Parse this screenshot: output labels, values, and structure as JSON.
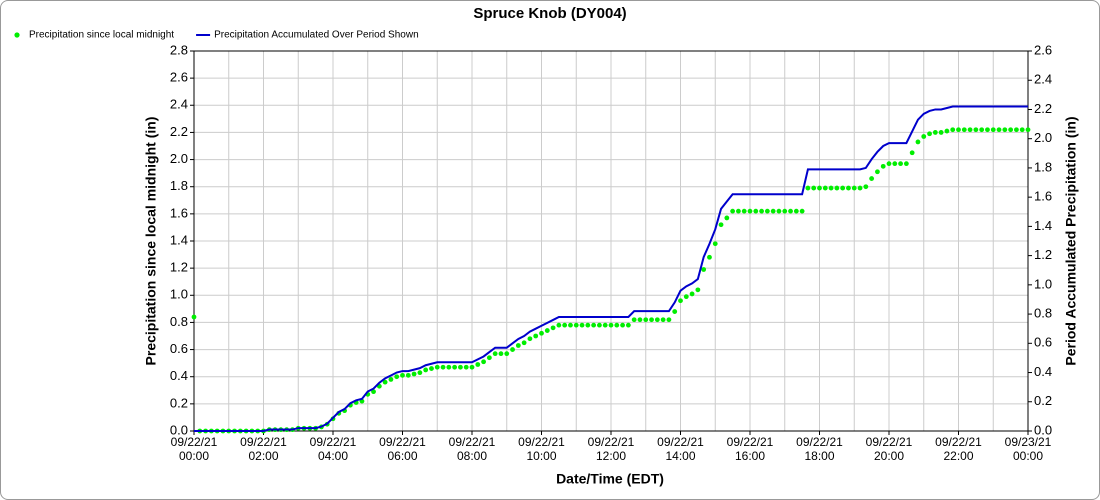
{
  "chart_data": {
    "type": "line",
    "title": "Spruce Knob (DY004)",
    "xlabel": "Date/Time (EDT)",
    "ylabel": "Precipitation since local midnight (in)",
    "y2label": "Period Accumulated Precipitation (in)",
    "grid": true,
    "legend": "top-left",
    "xlim": [
      0,
      1440
    ],
    "xticks": [
      {
        "value": 0,
        "label": "09/22/21 00:00"
      },
      {
        "value": 120,
        "label": "09/22/21 02:00"
      },
      {
        "value": 240,
        "label": "09/22/21 04:00"
      },
      {
        "value": 360,
        "label": "09/22/21 06:00"
      },
      {
        "value": 480,
        "label": "09/22/21 08:00"
      },
      {
        "value": 600,
        "label": "09/22/21 10:00"
      },
      {
        "value": 720,
        "label": "09/22/21 12:00"
      },
      {
        "value": 840,
        "label": "09/22/21 14:00"
      },
      {
        "value": 960,
        "label": "09/22/21 16:00"
      },
      {
        "value": 1080,
        "label": "09/22/21 18:00"
      },
      {
        "value": 1200,
        "label": "09/22/21 20:00"
      },
      {
        "value": 1320,
        "label": "09/22/21 22:00"
      },
      {
        "value": 1440,
        "label": "09/23/21 00:00"
      }
    ],
    "xminorticks": [
      60,
      180,
      300,
      420,
      540,
      660,
      780,
      900,
      1020,
      1140,
      1260,
      1380
    ],
    "ylim": [
      0,
      2.8
    ],
    "yticks": [
      {
        "value": 0,
        "label": "0.0"
      },
      0.2,
      0.4,
      0.6,
      0.8,
      {
        "value": 1,
        "label": "1.0"
      },
      1.2,
      1.4,
      1.6,
      1.8,
      {
        "value": 2,
        "label": "2.0"
      },
      2.2,
      2.4,
      2.6,
      2.8
    ],
    "y2lim": [
      0,
      2.6
    ],
    "y2ticks": [
      {
        "value": 0,
        "label": "0.0"
      },
      0.2,
      0.4,
      0.6,
      0.8,
      {
        "value": 1,
        "label": "1.0"
      },
      1.2,
      1.4,
      1.6,
      1.8,
      {
        "value": 2,
        "label": "2.0"
      },
      2.2,
      2.4,
      2.6
    ],
    "x": [
      0,
      10,
      20,
      30,
      40,
      50,
      60,
      70,
      80,
      90,
      100,
      110,
      120,
      130,
      140,
      150,
      160,
      170,
      180,
      190,
      200,
      210,
      220,
      230,
      240,
      250,
      260,
      270,
      280,
      290,
      300,
      310,
      320,
      330,
      340,
      350,
      360,
      370,
      380,
      390,
      400,
      410,
      420,
      430,
      440,
      450,
      460,
      470,
      480,
      490,
      500,
      510,
      520,
      530,
      540,
      550,
      560,
      570,
      580,
      590,
      600,
      610,
      620,
      630,
      640,
      650,
      660,
      670,
      680,
      690,
      700,
      710,
      720,
      730,
      740,
      750,
      760,
      770,
      780,
      790,
      800,
      810,
      820,
      830,
      840,
      850,
      860,
      870,
      880,
      890,
      900,
      910,
      920,
      930,
      940,
      950,
      960,
      970,
      980,
      990,
      1000,
      1010,
      1020,
      1030,
      1040,
      1050,
      1060,
      1070,
      1080,
      1090,
      1100,
      1110,
      1120,
      1130,
      1140,
      1150,
      1160,
      1170,
      1180,
      1190,
      1200,
      1210,
      1220,
      1230,
      1240,
      1250,
      1260,
      1270,
      1280,
      1290,
      1300,
      1310,
      1320,
      1330,
      1340,
      1350,
      1360,
      1370,
      1380,
      1390,
      1400,
      1410,
      1420,
      1430,
      1440
    ],
    "series": [
      {
        "name": "Precipitation since local midnight",
        "color": "#00ee00",
        "style": "dots",
        "values": [
          0.84,
          0,
          0,
          0,
          0,
          0,
          0,
          0,
          0,
          0,
          0,
          0,
          0,
          0.01,
          0.01,
          0.01,
          0.01,
          0.01,
          0.02,
          0.02,
          0.02,
          0.02,
          0.03,
          0.05,
          0.09,
          0.13,
          0.15,
          0.19,
          0.21,
          0.22,
          0.27,
          0.29,
          0.33,
          0.36,
          0.38,
          0.4,
          0.41,
          0.41,
          0.42,
          0.43,
          0.45,
          0.46,
          0.47,
          0.47,
          0.47,
          0.47,
          0.47,
          0.47,
          0.47,
          0.49,
          0.51,
          0.54,
          0.57,
          0.57,
          0.57,
          0.6,
          0.63,
          0.65,
          0.68,
          0.7,
          0.72,
          0.74,
          0.76,
          0.78,
          0.78,
          0.78,
          0.78,
          0.78,
          0.78,
          0.78,
          0.78,
          0.78,
          0.78,
          0.78,
          0.78,
          0.78,
          0.82,
          0.82,
          0.82,
          0.82,
          0.82,
          0.82,
          0.82,
          0.88,
          0.96,
          0.99,
          1.01,
          1.04,
          1.19,
          1.28,
          1.38,
          1.52,
          1.57,
          1.62,
          1.62,
          1.62,
          1.62,
          1.62,
          1.62,
          1.62,
          1.62,
          1.62,
          1.62,
          1.62,
          1.62,
          1.62,
          1.79,
          1.79,
          1.79,
          1.79,
          1.79,
          1.79,
          1.79,
          1.79,
          1.79,
          1.79,
          1.8,
          1.86,
          1.91,
          1.95,
          1.97,
          1.97,
          1.97,
          1.97,
          2.05,
          2.13,
          2.17,
          2.19,
          2.2,
          2.2,
          2.21,
          2.22,
          2.22,
          2.22,
          2.22,
          2.22,
          2.22,
          2.22,
          2.22,
          2.22,
          2.22,
          2.22,
          2.22,
          2.22,
          2.22
        ]
      },
      {
        "name": "Precipitation Accumulated Over Period Shown",
        "color": "#0000cc",
        "style": "line",
        "axis": "y2",
        "values": [
          0,
          0,
          0,
          0,
          0,
          0,
          0,
          0,
          0,
          0,
          0,
          0,
          0,
          0.01,
          0.01,
          0.01,
          0.01,
          0.01,
          0.02,
          0.02,
          0.02,
          0.02,
          0.03,
          0.05,
          0.09,
          0.13,
          0.15,
          0.19,
          0.21,
          0.22,
          0.27,
          0.29,
          0.33,
          0.36,
          0.38,
          0.4,
          0.41,
          0.41,
          0.42,
          0.43,
          0.45,
          0.46,
          0.47,
          0.47,
          0.47,
          0.47,
          0.47,
          0.47,
          0.47,
          0.49,
          0.51,
          0.54,
          0.57,
          0.57,
          0.57,
          0.6,
          0.63,
          0.65,
          0.68,
          0.7,
          0.72,
          0.74,
          0.76,
          0.78,
          0.78,
          0.78,
          0.78,
          0.78,
          0.78,
          0.78,
          0.78,
          0.78,
          0.78,
          0.78,
          0.78,
          0.78,
          0.82,
          0.82,
          0.82,
          0.82,
          0.82,
          0.82,
          0.82,
          0.88,
          0.96,
          0.99,
          1.01,
          1.04,
          1.19,
          1.28,
          1.38,
          1.52,
          1.57,
          1.62,
          1.62,
          1.62,
          1.62,
          1.62,
          1.62,
          1.62,
          1.62,
          1.62,
          1.62,
          1.62,
          1.62,
          1.62,
          1.79,
          1.79,
          1.79,
          1.79,
          1.79,
          1.79,
          1.79,
          1.79,
          1.79,
          1.79,
          1.8,
          1.86,
          1.91,
          1.95,
          1.97,
          1.97,
          1.97,
          1.97,
          2.05,
          2.13,
          2.17,
          2.19,
          2.2,
          2.2,
          2.21,
          2.22,
          2.22,
          2.22,
          2.22,
          2.22,
          2.22,
          2.22,
          2.22,
          2.22,
          2.22,
          2.22,
          2.22,
          2.22,
          2.22
        ]
      }
    ]
  }
}
